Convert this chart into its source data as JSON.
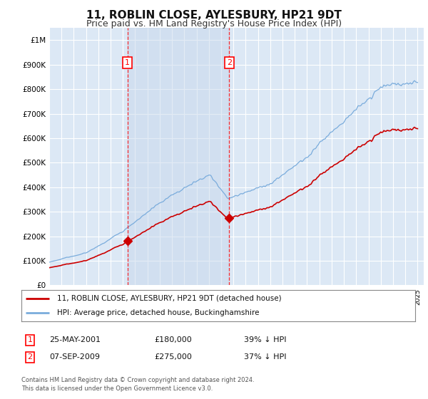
{
  "title": "11, ROBLIN CLOSE, AYLESBURY, HP21 9DT",
  "subtitle": "Price paid vs. HM Land Registry's House Price Index (HPI)",
  "title_fontsize": 11,
  "subtitle_fontsize": 9,
  "background_color": "#ffffff",
  "plot_bg_color": "#dce8f5",
  "grid_color": "#ffffff",
  "ylim": [
    0,
    1050000
  ],
  "yticks": [
    0,
    100000,
    200000,
    300000,
    400000,
    500000,
    600000,
    700000,
    800000,
    900000,
    1000000
  ],
  "ytick_labels": [
    "£0",
    "£100K",
    "£200K",
    "£300K",
    "£400K",
    "£500K",
    "£600K",
    "£700K",
    "£800K",
    "£900K",
    "£1M"
  ],
  "sale1_price": 180000,
  "sale2_price": 275000,
  "hpi_color": "#7aacdc",
  "price_color": "#cc0000",
  "shade_color": "#c5d8f0",
  "legend_label_price": "11, ROBLIN CLOSE, AYLESBURY, HP21 9DT (detached house)",
  "legend_label_hpi": "HPI: Average price, detached house, Buckinghamshire",
  "footer1": "Contains HM Land Registry data © Crown copyright and database right 2024.",
  "footer2": "This data is licensed under the Open Government Licence v3.0.",
  "table_rows": [
    {
      "num": "1",
      "date": "25-MAY-2001",
      "price": "£180,000",
      "note": "39% ↓ HPI"
    },
    {
      "num": "2",
      "date": "07-SEP-2009",
      "price": "£275,000",
      "note": "37% ↓ HPI"
    }
  ]
}
